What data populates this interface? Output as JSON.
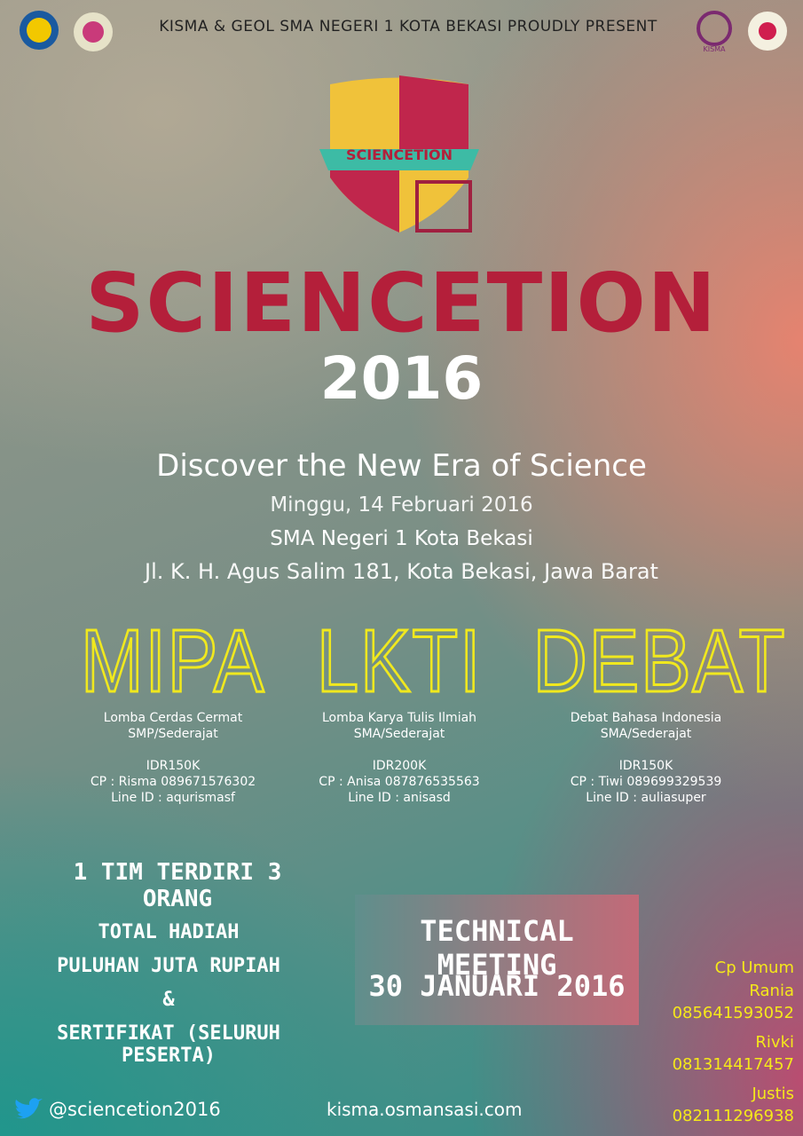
{
  "header": {
    "presenter": "KISMA & GEOL SMA NEGERI 1 KOTA BEKASI PROUDLY PRESENT",
    "logo_label": "KISMA"
  },
  "emblem": {
    "banner": "SCIENCETION"
  },
  "title": {
    "name": "SCIENCETION",
    "year": "2016"
  },
  "event": {
    "tagline": "Discover the New Era of Science",
    "date": "Minggu, 14 Februari 2016",
    "venue": "SMA Negeri 1 Kota Bekasi",
    "address": "Jl. K. H. Agus Salim 181, Kota Bekasi, Jawa Barat"
  },
  "competitions": [
    {
      "name": "MIPA",
      "description": "Lomba Cerdas Cermat",
      "level": "SMP/Sederajat",
      "fee": "IDR150K",
      "contact": "CP : Risma 089671576302",
      "line": "Line ID : aqurismasf"
    },
    {
      "name": "LKTI",
      "description": "Lomba Karya Tulis Ilmiah",
      "level": "SMA/Sederajat",
      "fee": "IDR200K",
      "contact": "CP : Anisa 087876535563",
      "line": "Line ID : anisasd"
    },
    {
      "name": "DEBAT",
      "description": "Debat Bahasa Indonesia",
      "level": "SMA/Sederajat",
      "fee": "IDR150K",
      "contact": "CP : Tiwi 089699329539",
      "line": "Line ID : auliasuper"
    }
  ],
  "team_note": "1 TIM TERDIRI 3 ORANG",
  "prizes": [
    "TOTAL HADIAH",
    "PULUHAN JUTA RUPIAH",
    "&",
    "SERTIFIKAT (SELURUH PESERTA)"
  ],
  "technical_meeting": {
    "title": "TECHNICAL MEETING",
    "date": "30 JANUARI 2016"
  },
  "contacts": {
    "heading": "Cp Umum",
    "people": [
      {
        "name": "Rania",
        "phone": "085641593052"
      },
      {
        "name": "Rivki",
        "phone": "081314417457"
      },
      {
        "name": "Justis",
        "phone": "082111296938"
      }
    ]
  },
  "footer": {
    "twitter": "@sciencetion2016",
    "website": "kisma.osmansasi.com"
  }
}
